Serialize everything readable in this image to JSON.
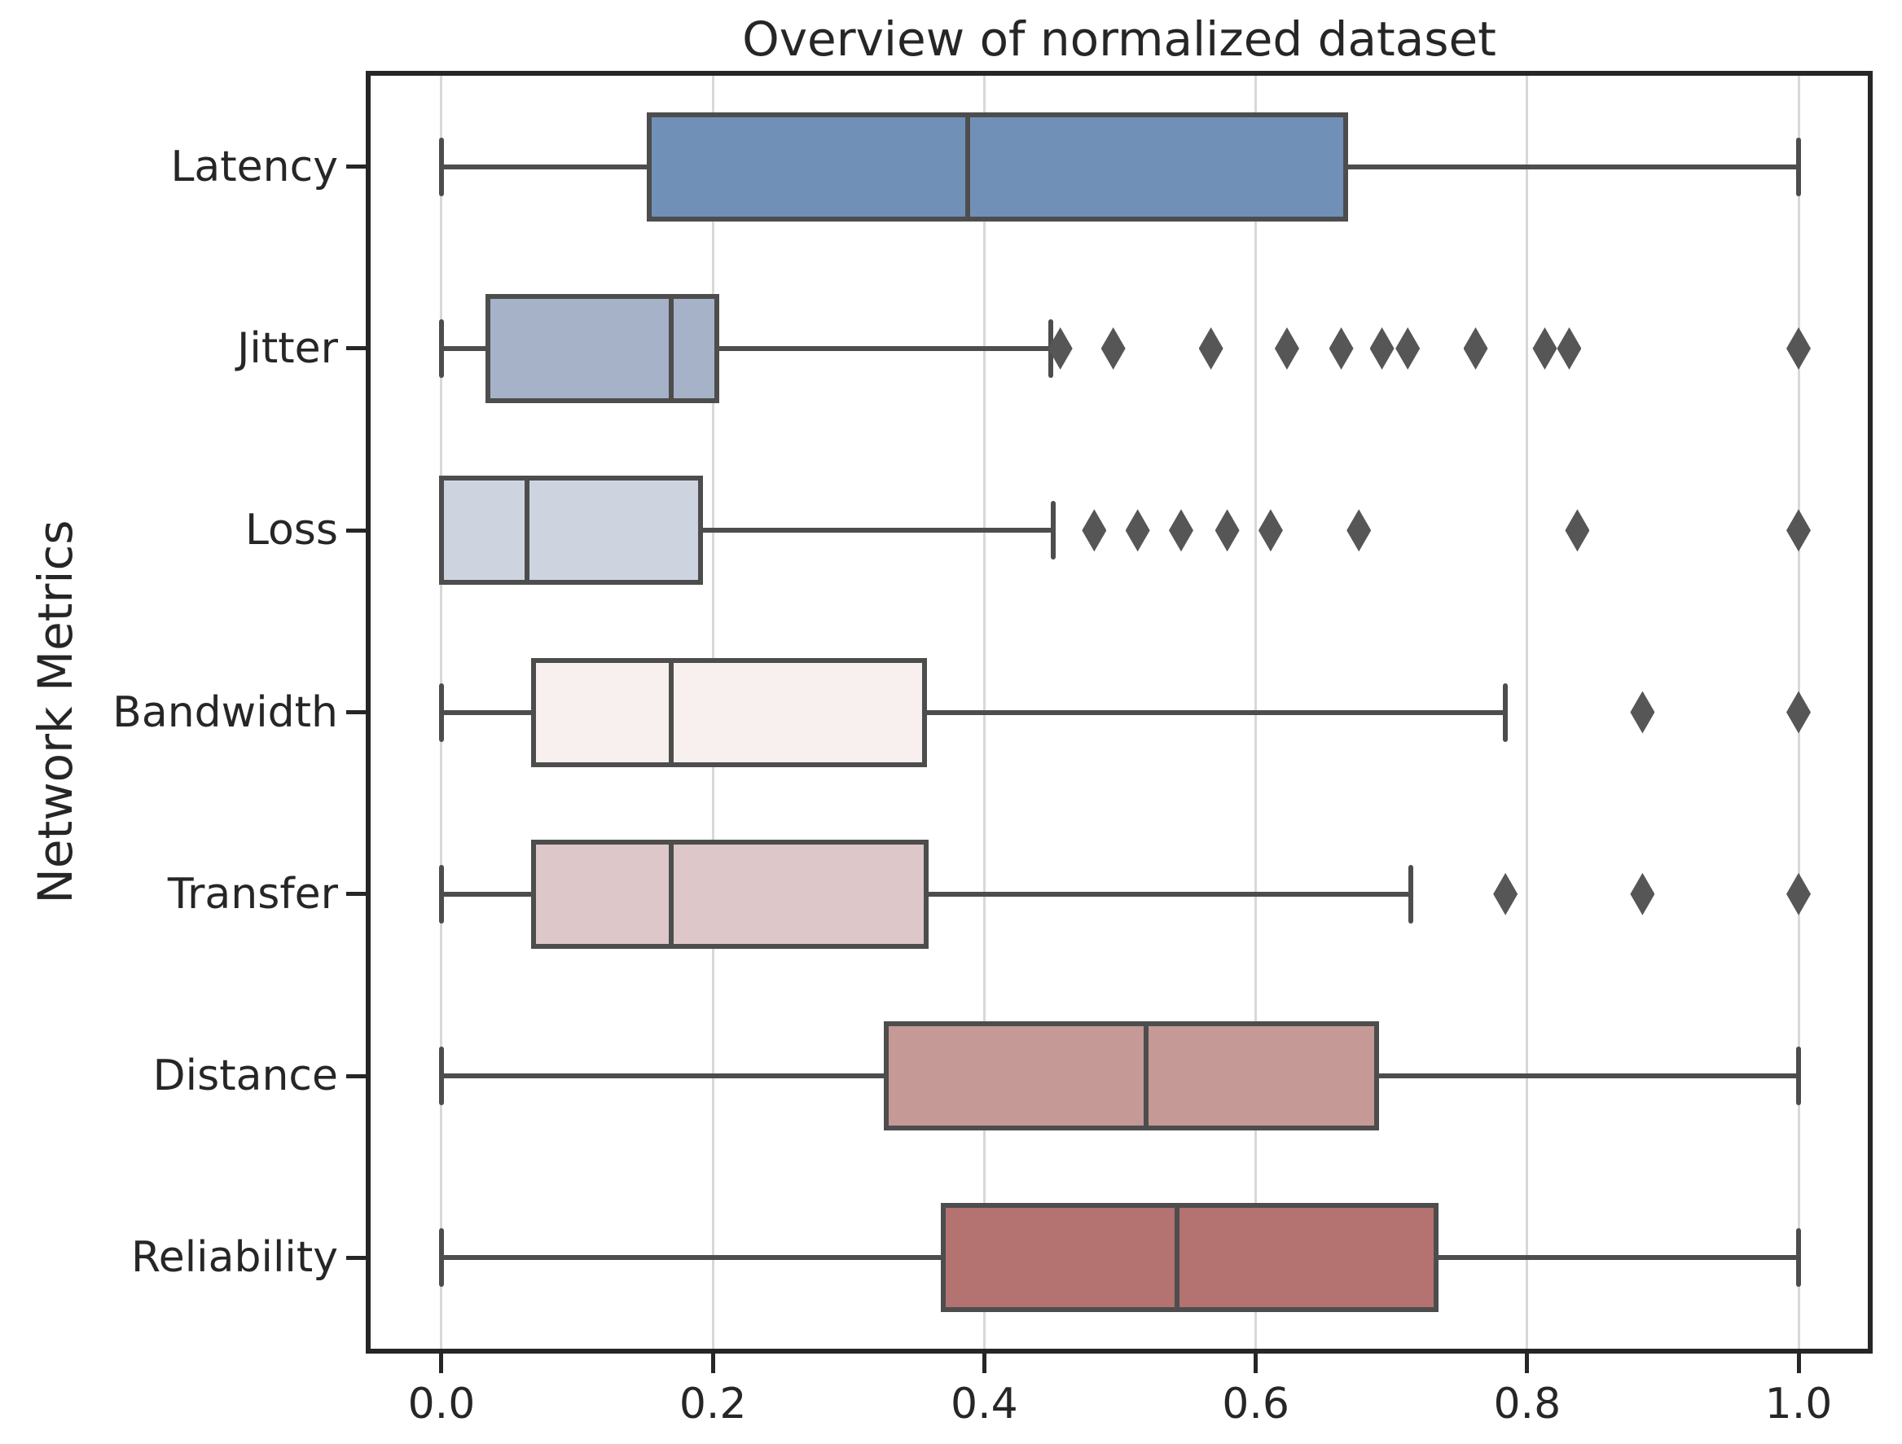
{
  "chart_data": {
    "type": "boxplot",
    "orientation": "horizontal",
    "title": "Overview of normalized dataset",
    "xlabel": "",
    "ylabel": "Network Metrics",
    "xlim": [
      -0.0522,
      1.051
    ],
    "xticks": [
      0.0,
      0.2,
      0.4,
      0.6,
      0.8,
      1.0
    ],
    "xtick_labels": [
      "0.0",
      "0.2",
      "0.4",
      "0.6",
      "0.8",
      "1.0"
    ],
    "grid": "vertical-only",
    "legend": "none",
    "categories": [
      "Latency",
      "Jitter",
      "Loss",
      "Bandwidth",
      "Transfer",
      "Distance",
      "Reliability"
    ],
    "series": [
      {
        "name": "Latency",
        "color": "#7090b7",
        "whislo": 0.0,
        "q1": 0.153,
        "med": 0.388,
        "q3": 0.666,
        "whishi": 1.0,
        "fliers": []
      },
      {
        "name": "Jitter",
        "color": "#a6b2c8",
        "whislo": 0.0,
        "q1": 0.034,
        "med": 0.169,
        "q3": 0.203,
        "whishi": 0.449,
        "fliers": [
          0.456,
          0.495,
          0.567,
          0.623,
          0.663,
          0.693,
          0.712,
          0.762,
          0.813,
          0.831,
          1.0
        ]
      },
      {
        "name": "Loss",
        "color": "#ced4df",
        "whislo": 0.0,
        "q1": 0.0,
        "med": 0.063,
        "q3": 0.191,
        "whishi": 0.451,
        "fliers": [
          0.481,
          0.513,
          0.545,
          0.579,
          0.611,
          0.676,
          0.837,
          1.0
        ]
      },
      {
        "name": "Bandwidth",
        "color": "#f7f0ef",
        "whislo": 0.0,
        "q1": 0.068,
        "med": 0.169,
        "q3": 0.356,
        "whishi": 0.784,
        "fliers": [
          0.885,
          1.0
        ]
      },
      {
        "name": "Transfer",
        "color": "#ddc7c9",
        "whislo": 0.0,
        "q1": 0.068,
        "med": 0.169,
        "q3": 0.357,
        "whishi": 0.714,
        "fliers": [
          0.784,
          0.885,
          1.0
        ]
      },
      {
        "name": "Distance",
        "color": "#c59996",
        "whislo": 0.0,
        "q1": 0.328,
        "med": 0.519,
        "q3": 0.689,
        "whishi": 1.0,
        "fliers": []
      },
      {
        "name": "Reliability",
        "color": "#b47270",
        "whislo": 0.0,
        "q1": 0.37,
        "med": 0.542,
        "q3": 0.733,
        "whishi": 1.0,
        "fliers": []
      }
    ],
    "style": {
      "box_edge_color": "#4d4d4d",
      "flier_color": "#565656",
      "grid_color": "#d8d8d8",
      "frame_color": "#262626",
      "flier_marker": "diamond"
    }
  }
}
